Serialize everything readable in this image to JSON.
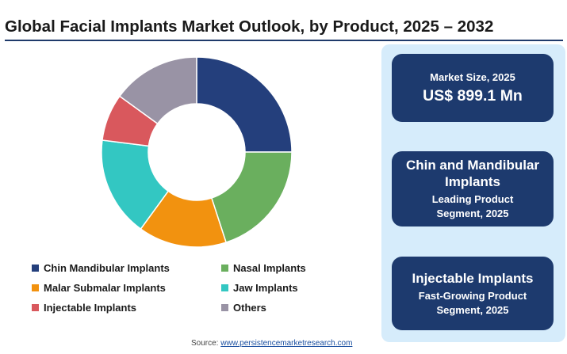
{
  "title": "Global Facial Implants Market Outlook, by Product, 2025 – 2032",
  "chart_data": {
    "type": "pie",
    "variant": "donut",
    "categories": [
      "Chin Mandibular Implants",
      "Nasal Implants",
      "Malar Submalar Implants",
      "Jaw Implants",
      "Injectable Implants",
      "Others"
    ],
    "values": [
      25,
      20,
      15,
      17,
      8,
      15
    ],
    "colors": [
      "#243f7c",
      "#6aaf5e",
      "#f2920f",
      "#33c7c2",
      "#d9585d",
      "#9993a5"
    ],
    "legend_position": "bottom-left"
  },
  "panel": {
    "market_size_label": "Market Size, 2025",
    "market_size_value": "US$ 899.1 Mn",
    "leading_title": "Chin and Mandibular Implants",
    "leading_subtitle": "Leading Product Segment, 2025",
    "growing_title": "Injectable Implants",
    "growing_subtitle": "Fast-Growing Product Segment, 2025"
  },
  "source": {
    "label": "Source:",
    "link": "www.persistencemarketresearch.com"
  }
}
